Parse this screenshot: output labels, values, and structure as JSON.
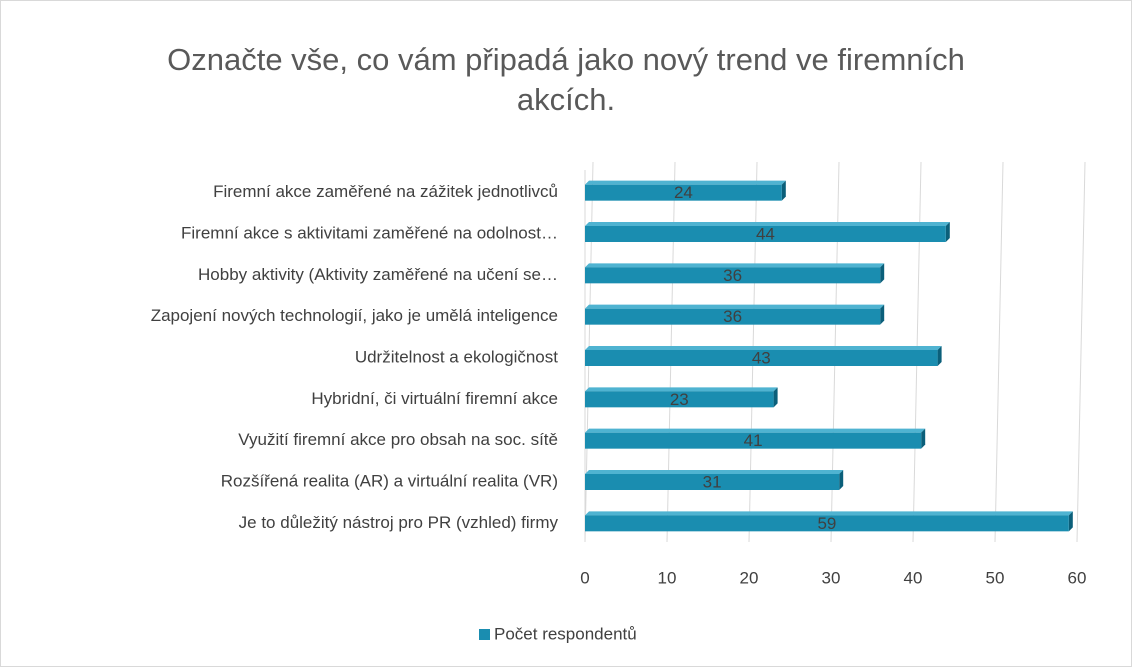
{
  "chart_data": {
    "type": "bar",
    "orientation": "horizontal",
    "title": "Označte vše, co vám připadá jako nový trend ve firemních akcích.",
    "categories": [
      "Firemní akce zaměřené na zážitek jednotlivců",
      "Firemní akce s aktivitami zaměřené na odolnost…",
      "Hobby aktivity (Aktivity zaměřené na učení se…",
      "Zapojení nových technologií, jako je umělá inteligence",
      "Udržitelnost a ekologičnost",
      "Hybridní, či virtuální firemní akce",
      "Využití firemní akce pro obsah na soc. sítě",
      "Rozšířená realita (AR) a virtuální realita (VR)",
      "Je to důležitý nástroj pro PR (vzhled) firmy"
    ],
    "series": [
      {
        "name": "Počet respondentů",
        "color": "#1a8db0",
        "values": [
          24,
          44,
          36,
          36,
          43,
          23,
          41,
          31,
          59
        ]
      }
    ],
    "xlim": [
      0,
      60
    ],
    "xticks": [
      0,
      10,
      20,
      30,
      40,
      50,
      60
    ],
    "grid": true,
    "legend": "bottom"
  }
}
